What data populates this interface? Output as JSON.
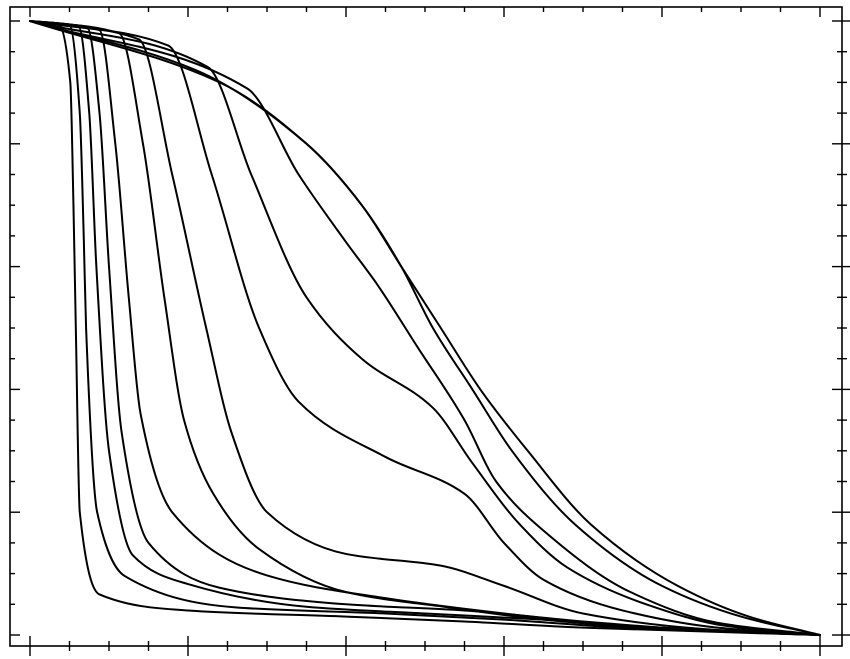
{
  "chart_data": {
    "type": "line",
    "title": "",
    "xlabel": "",
    "ylabel": "",
    "xlim": [
      0,
      1
    ],
    "ylim": [
      0,
      1
    ],
    "grid": false,
    "legend": "none",
    "line_color": "#000000",
    "series": [
      {
        "x": [
          0.0,
          0.036,
          0.051,
          0.055,
          0.058,
          0.063,
          0.088,
          0.2,
          0.4,
          0.55,
          0.7,
          1.0
        ],
        "y": [
          1.0,
          0.995,
          0.9,
          0.7,
          0.5,
          0.2,
          0.066,
          0.04,
          0.03,
          0.022,
          0.012,
          0.0
        ]
      },
      {
        "x": [
          0.0,
          0.05,
          0.063,
          0.068,
          0.071,
          0.085,
          0.12,
          0.26,
          0.45,
          0.6,
          0.75,
          1.0
        ],
        "y": [
          1.0,
          0.993,
          0.85,
          0.65,
          0.5,
          0.2,
          0.096,
          0.045,
          0.035,
          0.025,
          0.012,
          0.0
        ]
      },
      {
        "x": [
          0.0,
          0.062,
          0.075,
          0.084,
          0.1,
          0.13,
          0.2,
          0.35,
          0.5,
          0.65,
          0.8,
          1.0
        ],
        "y": [
          1.0,
          0.99,
          0.85,
          0.6,
          0.3,
          0.13,
          0.083,
          0.046,
          0.035,
          0.025,
          0.012,
          0.0
        ]
      },
      {
        "x": [
          0.0,
          0.073,
          0.088,
          0.1,
          0.116,
          0.15,
          0.24,
          0.4,
          0.55,
          0.7,
          0.85,
          1.0
        ],
        "y": [
          1.0,
          0.988,
          0.85,
          0.6,
          0.33,
          0.15,
          0.077,
          0.05,
          0.04,
          0.022,
          0.008,
          0.0
        ]
      },
      {
        "x": [
          0.0,
          0.088,
          0.108,
          0.125,
          0.14,
          0.18,
          0.3,
          0.45,
          0.6,
          0.75,
          0.88,
          1.0
        ],
        "y": [
          1.0,
          0.985,
          0.8,
          0.55,
          0.36,
          0.2,
          0.097,
          0.06,
          0.035,
          0.015,
          0.006,
          0.0
        ]
      },
      {
        "x": [
          0.0,
          0.113,
          0.143,
          0.17,
          0.195,
          0.232,
          0.29,
          0.4,
          0.53,
          0.65,
          0.8,
          1.0
        ],
        "y": [
          1.0,
          0.98,
          0.8,
          0.55,
          0.35,
          0.23,
          0.14,
          0.07,
          0.045,
          0.025,
          0.01,
          0.0
        ]
      },
      {
        "x": [
          0.0,
          0.138,
          0.18,
          0.223,
          0.255,
          0.3,
          0.4,
          0.52,
          0.6,
          0.7,
          0.85,
          1.0
        ],
        "y": [
          1.0,
          0.97,
          0.75,
          0.5,
          0.33,
          0.2,
          0.132,
          0.113,
          0.08,
          0.035,
          0.01,
          0.0
        ]
      },
      {
        "x": [
          0.0,
          0.175,
          0.23,
          0.29,
          0.34,
          0.45,
          0.55,
          0.6,
          0.65,
          0.75,
          0.87,
          1.0
        ],
        "y": [
          1.0,
          0.96,
          0.75,
          0.5,
          0.38,
          0.29,
          0.23,
          0.15,
          0.09,
          0.04,
          0.012,
          0.0
        ]
      },
      {
        "x": [
          0.0,
          0.225,
          0.28,
          0.35,
          0.42,
          0.51,
          0.56,
          0.62,
          0.68,
          0.78,
          0.88,
          1.0
        ],
        "y": [
          1.0,
          0.925,
          0.75,
          0.55,
          0.45,
          0.37,
          0.28,
          0.18,
          0.11,
          0.05,
          0.015,
          0.0
        ]
      },
      {
        "x": [
          0.0,
          0.275,
          0.34,
          0.4,
          0.44,
          0.49,
          0.55,
          0.59,
          0.65,
          0.76,
          0.87,
          1.0
        ],
        "y": [
          1.0,
          0.89,
          0.75,
          0.64,
          0.57,
          0.47,
          0.35,
          0.25,
          0.17,
          0.07,
          0.02,
          0.0
        ]
      },
      {
        "x": [
          0.0,
          0.24,
          0.35,
          0.42,
          0.47,
          0.51,
          0.56,
          0.61,
          0.69,
          0.8,
          0.9,
          1.0
        ],
        "y": [
          1.0,
          0.9,
          0.8,
          0.7,
          0.6,
          0.5,
          0.4,
          0.3,
          0.18,
          0.08,
          0.03,
          0.0
        ]
      },
      {
        "x": [
          0.0,
          0.21,
          0.35,
          0.42,
          0.47,
          0.52,
          0.57,
          0.63,
          0.71,
          0.82,
          0.91,
          1.0
        ],
        "y": [
          1.0,
          0.92,
          0.8,
          0.7,
          0.6,
          0.5,
          0.4,
          0.3,
          0.18,
          0.08,
          0.03,
          0.0
        ]
      }
    ]
  }
}
